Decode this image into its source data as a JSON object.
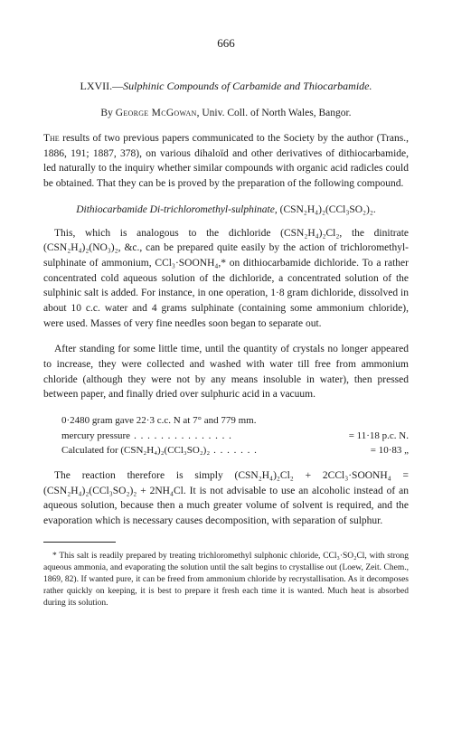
{
  "page_number": "666",
  "title_roman": "LXVII.",
  "title_dash": "—",
  "title_italic": "Sulphinic Compounds of Carbamide and Thiocarbamide.",
  "author_by": "By ",
  "author_name": "George McGowan",
  "author_affil": ", Univ. Coll. of North Wales, Bangor.",
  "para1a": "The",
  "para1b": " results of two previous papers communicated to the Society by the author (Trans., 1886, 191; 1887, 378), on various dihaloïd and other derivatives of dithiocarbamide, led naturally to the inquiry whether similar compounds with organic acid radicles could be obtained. That they can be is proved by the preparation of the following compound.",
  "section_title_italic": "Dithiocarbamide Di-trichloromethyl-sulphinate, ",
  "section_formula": "(CSN₂H₄)₂(CCl₃SO₂)₂.",
  "para2": "This, which is analogous to the dichloride (CSN₂H₄)₂Cl₂, the dinitrate (CSN₂H₄)₂(NO₃)₂, &c., can be prepared quite easily by the action of trichloromethyl-sulphinate of ammonium, CCl₃·SOONH₄,* on dithiocarbamide dichloride. To a rather concentrated cold aqueous solution of the dichloride, a concentrated solution of the sulphinic salt is added. For instance, in one operation, 1·8 gram dichloride, dissolved in about 10 c.c. water and 4 grams sulphinate (containing some ammonium chloride), were used. Masses of very fine needles soon began to separate out.",
  "para3": "After standing for some little time, until the quantity of crystals no longer appeared to increase, they were collected and washed with water till free from ammonium chloride (although they were not by any means insoluble in water), then pressed between paper, and finally dried over sulphuric acid in a vacuum.",
  "calc_line1": "0·2480 gram gave 22·3 c.c. N at 7° and 779 mm.",
  "calc_line2_left": "mercury pressure ",
  "calc_line2_right": " = 11·18 p.c. N.",
  "calc_line3_left": "Calculated for (CSN₂H₄)₂(CCl₃SO₂)₂ ",
  "calc_line3_right": " = 10·83    „",
  "para4": "The reaction therefore is simply (CSN₂H₄)₂Cl₂ + 2CCl₃·SOONH₄ = (CSN₂H₄)₂(CCl₃SO₂)₂ + 2NH₄Cl. It is not advisable to use an alcoholic instead of an aqueous solution, because then a much greater volume of solvent is required, and the evaporation which is necessary causes decomposition, with separation of sulphur.",
  "footnote": "* This salt is readily prepared by treating trichloromethyl sulphonic chloride, CCl₃·SO₂Cl, with strong aqueous ammonia, and evaporating the solution until the salt begins to crystallise out (Loew, Zeit. Chem., 1869, 82). If wanted pure, it can be freed from ammonium chloride by recrystallisation. As it decomposes rather quickly on keeping, it is best to prepare it fresh each time it is wanted. Much heat is absorbed during its solution.",
  "colors": {
    "text": "#1a1a1a",
    "background": "#ffffff"
  },
  "typography": {
    "body_fontsize_pt": 11.5,
    "footnote_fontsize_pt": 9.5,
    "font_family": "Times New Roman"
  }
}
